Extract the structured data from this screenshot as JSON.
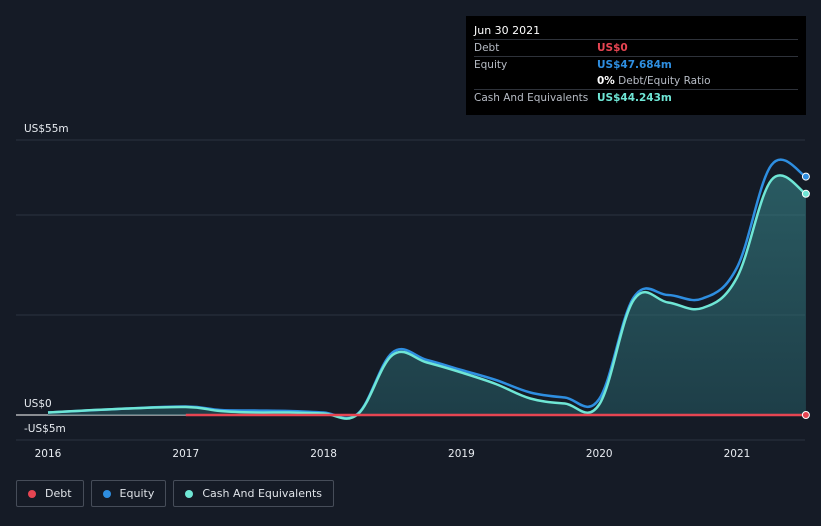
{
  "tooltip": {
    "date": "Jun 30 2021",
    "debt_label": "Debt",
    "debt_value": "US$0",
    "equity_label": "Equity",
    "equity_value": "US$47.684m",
    "ratio_value": "0%",
    "ratio_label": "Debt/Equity Ratio",
    "cash_label": "Cash And Equivalents",
    "cash_value": "US$44.243m"
  },
  "legend": [
    {
      "label": "Debt",
      "color": "#e64552"
    },
    {
      "label": "Equity",
      "color": "#2e8ee0"
    },
    {
      "label": "Cash And Equivalents",
      "color": "#6fe6d5"
    }
  ],
  "colors": {
    "background": "#151b26",
    "debt": "#e64552",
    "equity": "#2e8ee0",
    "cash": "#6fe6d5",
    "grid": "#2c3340"
  },
  "chart_data": {
    "type": "line",
    "y_labels": [
      "US$55m",
      "US$0",
      "-US$5m"
    ],
    "x_tick_labels": [
      "2016",
      "2017",
      "2018",
      "2019",
      "2020",
      "2021"
    ],
    "x_ticks": [
      2016,
      2017,
      2018,
      2019,
      2020,
      2021
    ],
    "xlim": [
      2015.77,
      2021.5
    ],
    "ylim": [
      -5,
      55
    ],
    "grid": true,
    "legend_position": "bottom-left",
    "series": [
      {
        "name": "Equity",
        "x": [
          2016.0,
          2016.5,
          2017.0,
          2017.25,
          2017.5,
          2017.75,
          2018.0,
          2018.25,
          2018.5,
          2018.75,
          2019.0,
          2019.25,
          2019.5,
          2019.75,
          2020.0,
          2020.25,
          2020.5,
          2020.75,
          2021.0,
          2021.25,
          2021.5
        ],
        "y": [
          0.5,
          1.2,
          1.7,
          1.0,
          0.9,
          0.8,
          0.5,
          0.3,
          12.5,
          11.0,
          9.0,
          7.0,
          4.5,
          3.5,
          3.2,
          23.5,
          24.0,
          23.3,
          29.5,
          50.0,
          47.684
        ]
      },
      {
        "name": "Cash And Equivalents",
        "x": [
          2016.0,
          2016.5,
          2017.0,
          2017.25,
          2017.5,
          2017.75,
          2018.0,
          2018.25,
          2018.5,
          2018.75,
          2019.0,
          2019.25,
          2019.5,
          2019.75,
          2020.0,
          2020.25,
          2020.5,
          2020.75,
          2021.0,
          2021.25,
          2021.5
        ],
        "y": [
          0.5,
          1.2,
          1.6,
          0.8,
          0.5,
          0.5,
          0.3,
          0.2,
          12.0,
          10.5,
          8.5,
          6.2,
          3.3,
          2.3,
          2.1,
          23.0,
          22.5,
          21.4,
          27.5,
          47.0,
          44.243
        ]
      },
      {
        "name": "Debt",
        "x": [
          2017.0,
          2018.0,
          2019.0,
          2020.0,
          2021.0,
          2021.5
        ],
        "y": [
          0,
          0,
          0,
          0,
          0,
          0
        ]
      }
    ]
  }
}
